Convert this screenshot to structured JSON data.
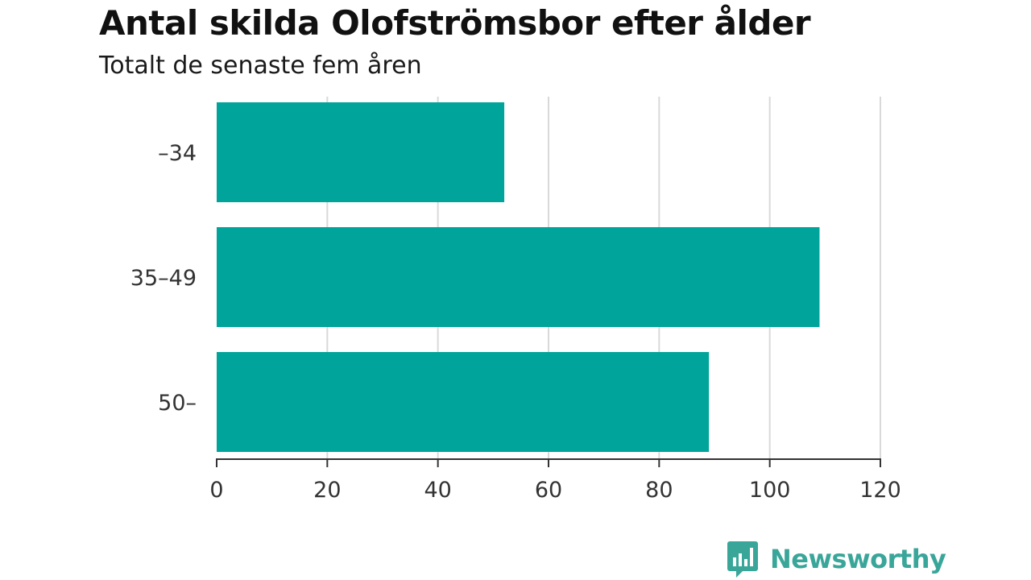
{
  "chart_data": {
    "type": "bar",
    "orientation": "horizontal",
    "title": "Antal skilda Olofströmsbor efter ålder",
    "subtitle": "Totalt de senaste fem åren",
    "categories": [
      "–34",
      "35–49",
      "50–"
    ],
    "values": [
      52,
      109,
      89
    ],
    "xlim": [
      0,
      120
    ],
    "xticks": [
      0,
      20,
      40,
      60,
      80,
      100,
      120
    ],
    "grid": true,
    "bar_color": "#00a49a",
    "grid_color": "#d9d9d9",
    "axis_color": "#333333"
  },
  "branding": {
    "name": "Newsworthy",
    "icon": "bar-chart-speech-bubble-icon",
    "color": "#3aa69a"
  }
}
